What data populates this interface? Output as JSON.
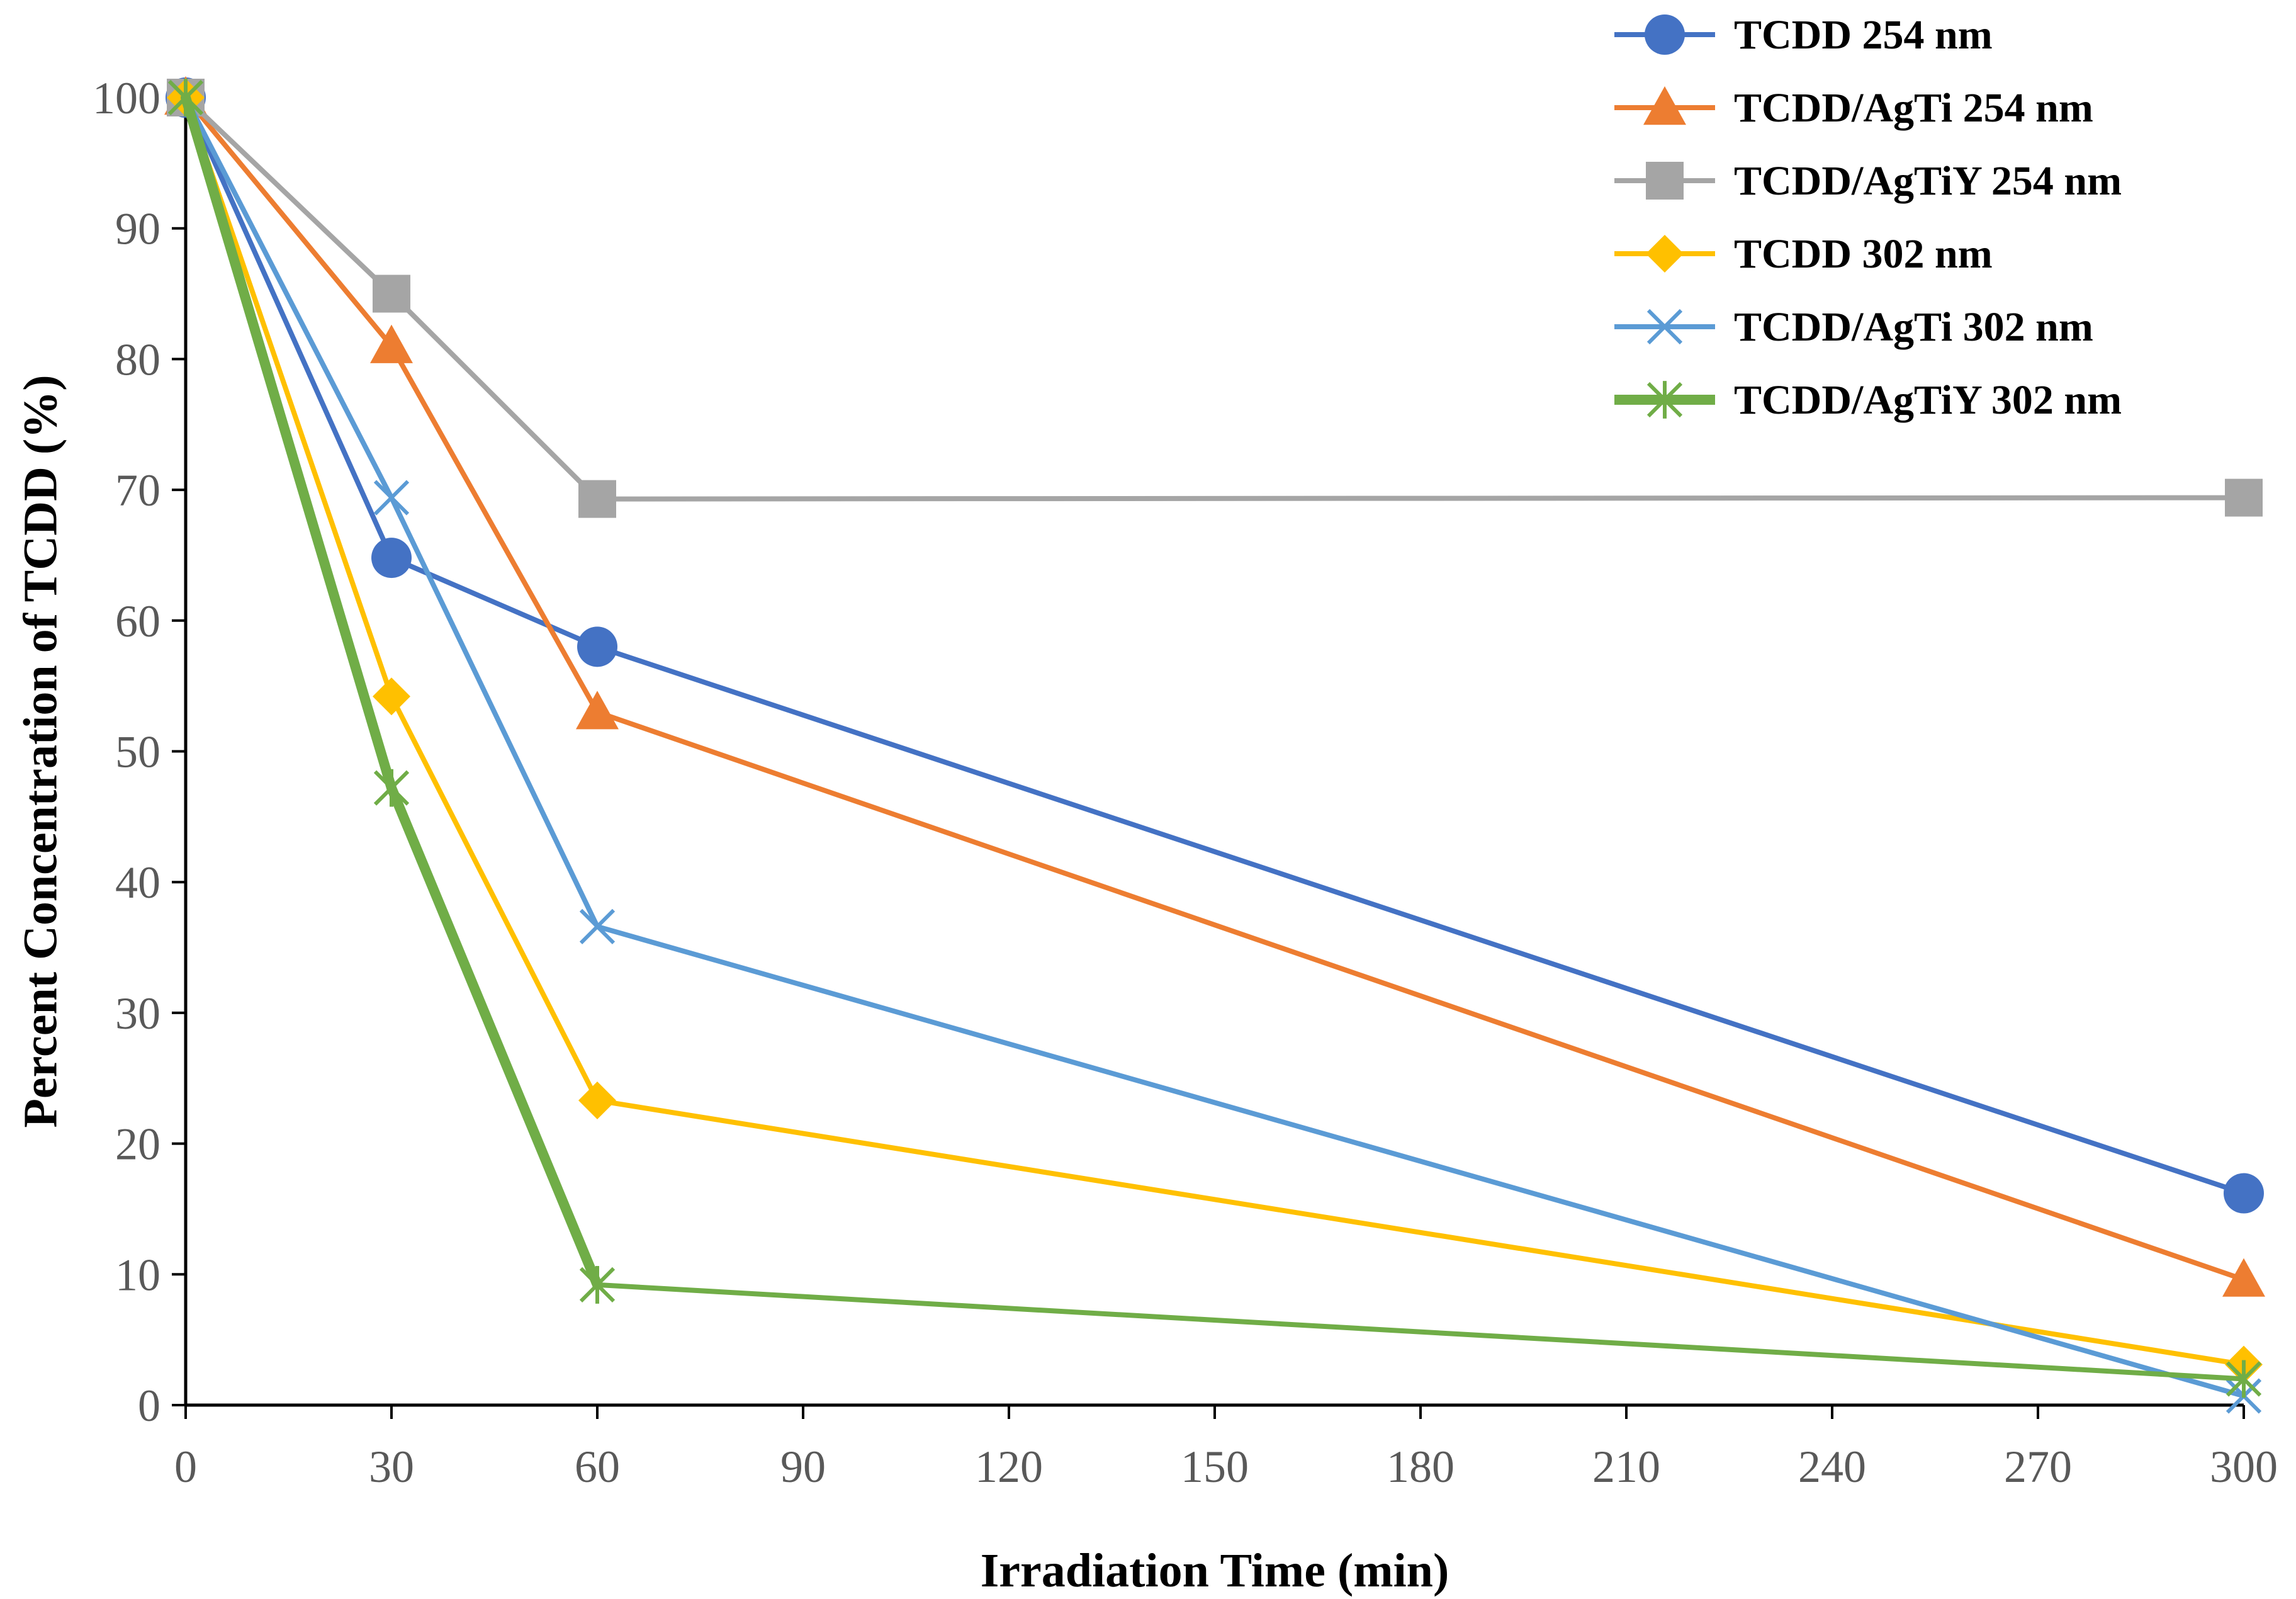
{
  "chart_data": {
    "type": "line",
    "title": "",
    "xlabel": "Irradiation Time (min)",
    "ylabel": "Percent Concentration of TCDD (%)",
    "xlim": [
      0,
      300
    ],
    "ylim": [
      0,
      100
    ],
    "x_ticks": [
      0,
      30,
      60,
      90,
      120,
      150,
      180,
      210,
      240,
      270,
      300
    ],
    "y_ticks": [
      0,
      10,
      20,
      30,
      40,
      50,
      60,
      70,
      80,
      90,
      100
    ],
    "grid": false,
    "legend_position": "top-right",
    "x": [
      0,
      30,
      60,
      300
    ],
    "series": [
      {
        "name": "TCDD 254 nm",
        "values": [
          100,
          64.8,
          58,
          16.2
        ],
        "color": "#4472C4",
        "marker": "circle"
      },
      {
        "name": "TCDD/AgTi 254 nm",
        "values": [
          100,
          81,
          53,
          9.6
        ],
        "color": "#ED7D31",
        "marker": "triangle"
      },
      {
        "name": "TCDD/AgTiY 254 nm",
        "values": [
          100,
          85,
          69.3,
          69.4
        ],
        "color": "#A5A5A5",
        "marker": "square"
      },
      {
        "name": "TCDD 302 nm",
        "values": [
          100,
          54.2,
          23.3,
          3.1
        ],
        "color": "#FFC000",
        "marker": "diamond"
      },
      {
        "name": "TCDD/AgTi 302 nm",
        "values": [
          100,
          69.4,
          36.6,
          0.7
        ],
        "color": "#5B9BD5",
        "marker": "x"
      },
      {
        "name": "TCDD/AgTiY 302 nm",
        "values": [
          100,
          47.2,
          9.2,
          2.0
        ],
        "color": "#70AD47",
        "marker": "star",
        "thick_to_index": 2
      }
    ]
  }
}
